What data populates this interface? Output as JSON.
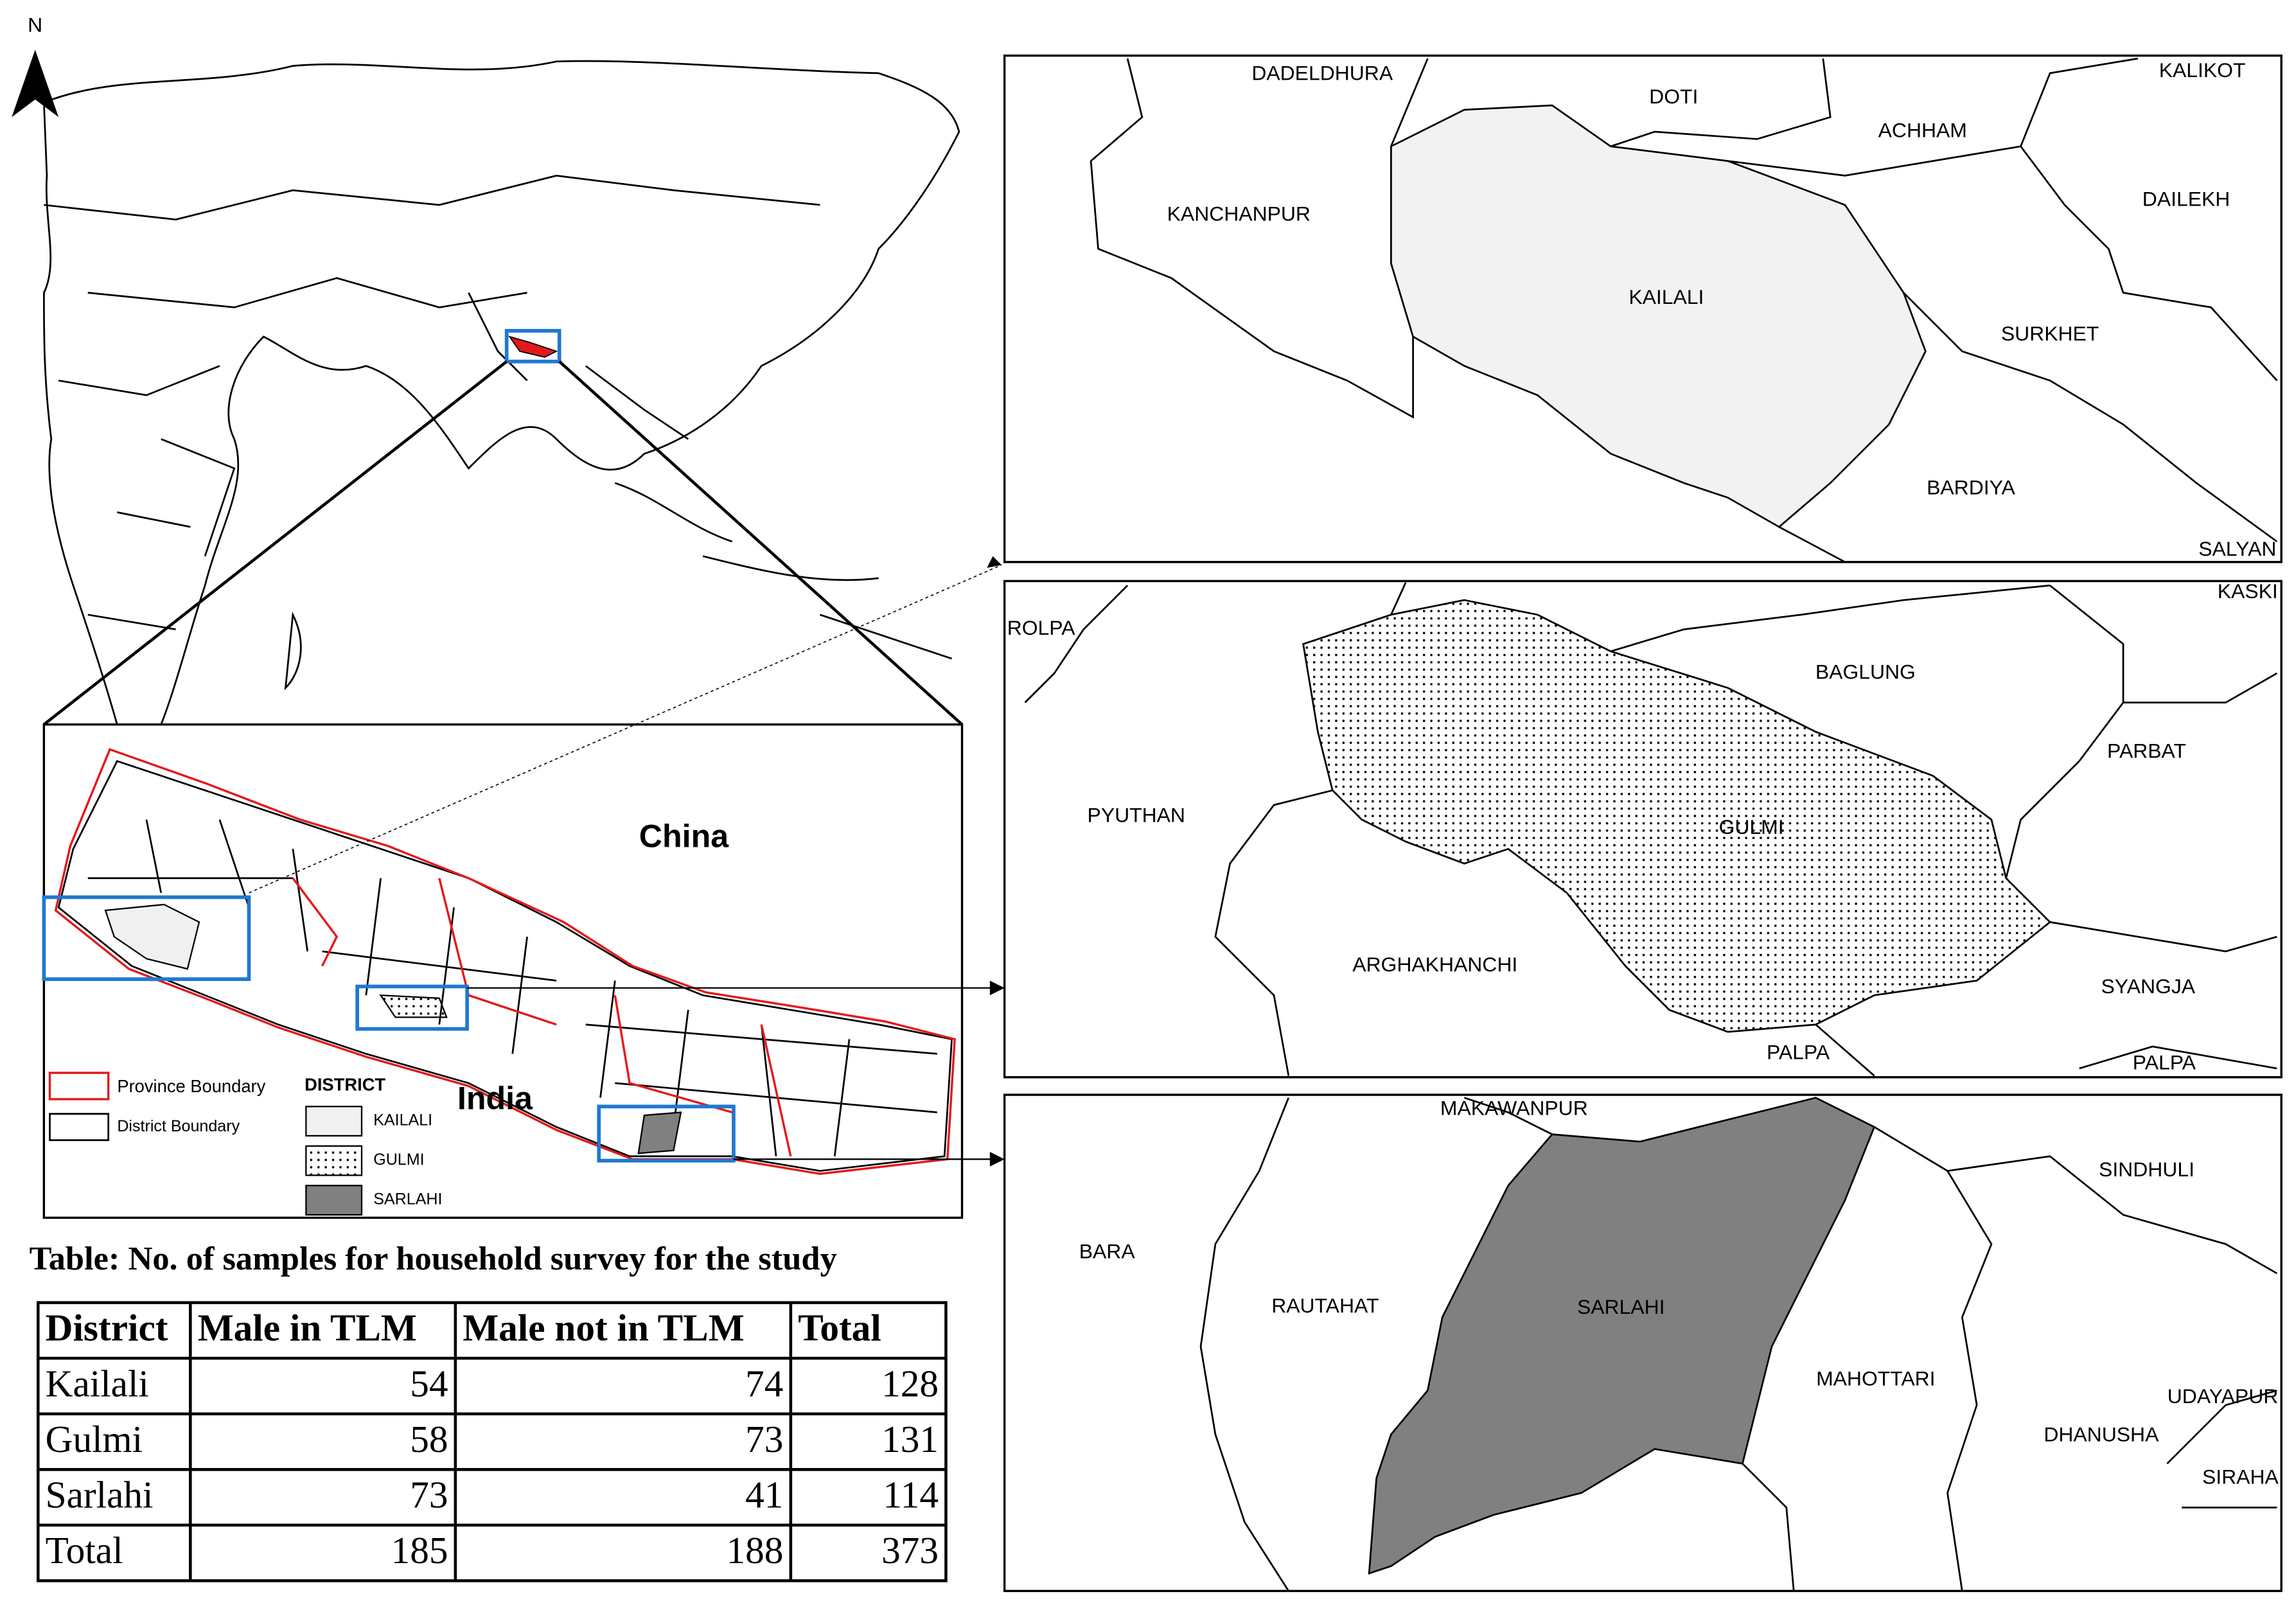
{
  "north_arrow": "N",
  "overview_map": {
    "labels": [
      "China",
      "India"
    ]
  },
  "legend": {
    "province_boundary": "Province Boundary",
    "district_boundary": "District Boundary",
    "district_title": "DISTRICT",
    "districts": [
      "KAILALI",
      "GULMI",
      "SARLAHI"
    ]
  },
  "inset_kailali": {
    "labels": [
      "DADELDHURA",
      "DOTI",
      "ACHHAM",
      "KALIKOT",
      "KANCHANPUR",
      "DAILEKH",
      "KAILALI",
      "SURKHET",
      "BARDIYA",
      "SALYAN"
    ]
  },
  "inset_gulmi": {
    "labels": [
      "ROLPA",
      "KASKI",
      "BAGLUNG",
      "PARBAT",
      "PYUTHAN",
      "GULMI",
      "ARGHAKHANCHI",
      "SYANGJA",
      "PALPA",
      "PALPA"
    ]
  },
  "inset_sarlahi": {
    "labels": [
      "MAKAWANPUR",
      "SINDHULI",
      "BARA",
      "RAUTAHAT",
      "SARLAHI",
      "MAHOTTARI",
      "UDAYAPUR",
      "DHANUSHA",
      "SIRAHA"
    ]
  },
  "table": {
    "caption": "Table: No. of samples for household survey for the study",
    "header": [
      "District",
      "Male in TLM",
      "Male not in TLM",
      "Total"
    ],
    "rows": [
      [
        "Kailali",
        54,
        74,
        128
      ],
      [
        "Gulmi",
        58,
        73,
        131
      ],
      [
        "Sarlahi",
        73,
        41,
        114
      ],
      [
        "Total",
        185,
        188,
        373
      ]
    ]
  }
}
